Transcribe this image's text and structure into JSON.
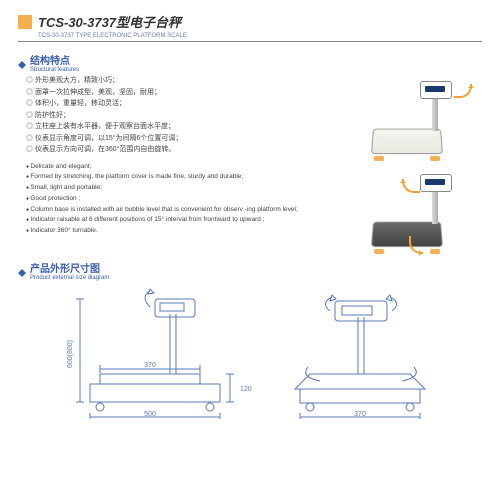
{
  "title_cn": "TCS-30-3737型电子台秤",
  "title_en": "TCS-30-3737 TYPE ELECTRONIC PLATFORM SCALE",
  "sec1_cn": "结构特点",
  "sec1_en": "Structural features",
  "feat_cn": [
    "外形美观大方，精致小巧；",
    "面罩一次拉伸成型，美观，坚固，耐用；",
    "体积小，重量轻，移动灵活；",
    "防护性好；",
    "立柱座上装有水平器，便于观察台面水平度；",
    "仪表显示角度可调，以15°为间隔6个位置可调；",
    "仪表显示方向可调，在360°范围内自由旋转。"
  ],
  "feat_en": [
    "Delicate and elegant;",
    "Formed by stretching, the platform cover is made fine, sturdy and durable;",
    "Small, light and portable;",
    "Good protection ;",
    "Column base is installed with air bubble level that is convenient for observ -ing platform level;",
    "Indicator raisable at 6 different positions of 15° interval from frontward to upward ;",
    "Indicator 360° turnable."
  ],
  "sec2_cn": "产品外形尺寸图",
  "sec2_en": "Product external size diagram",
  "dims": {
    "w": "500",
    "p": "370",
    "h1": "600(800)",
    "h2": "120",
    "p2": "370"
  },
  "colors": {
    "accent": "#3a5db0",
    "block": "#f4b050",
    "line": "#5a78b8",
    "arrow": "#f4a030"
  }
}
